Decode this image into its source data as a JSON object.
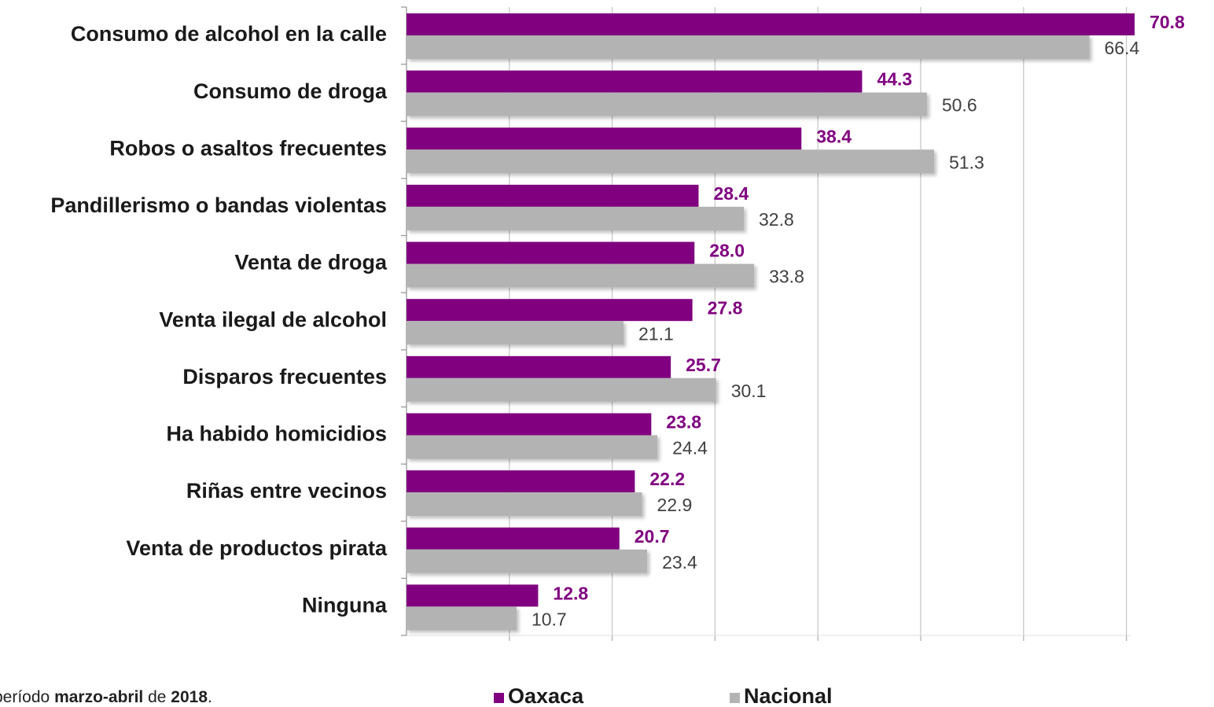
{
  "chart_data": {
    "type": "hbar",
    "categories": [
      "Consumo de alcohol en la calle",
      "Consumo de droga",
      "Robos o asaltos frecuentes",
      "Pandillerismo o bandas violentas",
      "Venta de droga",
      "Venta ilegal de alcohol",
      "Disparos frecuentes",
      "Ha habido homicidios",
      "Riñas entre vecinos",
      "Venta de productos pirata",
      "Ninguna"
    ],
    "series": [
      {
        "name": "Oaxaca",
        "color": "#800080",
        "values": [
          70.8,
          44.3,
          38.4,
          28.4,
          28.0,
          27.8,
          25.7,
          23.8,
          22.2,
          20.7,
          12.8
        ],
        "value_labels": [
          "70.8",
          "44.3",
          "38.4",
          "28.4",
          "28.0",
          "27.8",
          "25.7",
          "23.8",
          "22.2",
          "20.7",
          "12.8"
        ]
      },
      {
        "name": "Nacional",
        "color": "#b3b3b3",
        "values": [
          66.4,
          50.6,
          51.3,
          32.8,
          33.8,
          21.1,
          30.1,
          24.4,
          22.9,
          23.4,
          10.7
        ],
        "value_labels": [
          "66.4",
          "50.6",
          "51.3",
          "32.8",
          "33.8",
          "21.1",
          "30.1",
          "24.4",
          "22.9",
          "23.4",
          "10.7"
        ]
      }
    ],
    "xlim": [
      0,
      75
    ],
    "xticks": [
      0,
      10,
      20,
      30,
      40,
      50,
      60,
      70
    ],
    "grid": true,
    "footnote": [
      "período ",
      "marzo-abril",
      " de ",
      "2018",
      "."
    ]
  }
}
